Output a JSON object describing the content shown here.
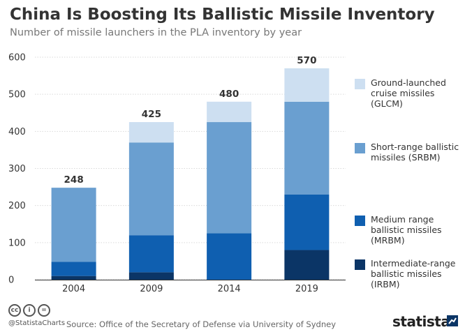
{
  "header": {
    "title": "China Is Boosting Its Ballistic Missile Inventory",
    "subtitle": "Number of missile launchers in the PLA inventory by year"
  },
  "chart_data": {
    "type": "bar",
    "stacked": true,
    "categories": [
      "2004",
      "2009",
      "2014",
      "2019"
    ],
    "series": [
      {
        "name": "Intermediate-range ballistic missiles (IRBM)",
        "color": "#0b3566",
        "values": [
          10,
          20,
          0,
          80
        ]
      },
      {
        "name": "Medium range ballistic missiles (MRBM)",
        "color": "#0f5fb0",
        "values": [
          38,
          100,
          125,
          150
        ]
      },
      {
        "name": "Short-range ballistic missiles (SRBM)",
        "color": "#6a9fd0",
        "values": [
          200,
          250,
          300,
          250
        ]
      },
      {
        "name": "Ground-launched cruise missiles (GLCM)",
        "color": "#cddff1",
        "values": [
          0,
          55,
          55,
          90
        ]
      }
    ],
    "totals": [
      "248",
      "425",
      "480",
      "570"
    ],
    "ylim": [
      0,
      600
    ],
    "yticks": [
      "0",
      "100",
      "200",
      "300",
      "400",
      "500",
      "600"
    ],
    "grid": true,
    "legend_position": "right"
  },
  "legend": {
    "items": [
      {
        "label": "Ground-launched\ncruise missiles\n(GLCM)",
        "color": "#cddff1"
      },
      {
        "label": "Short-range ballistic\nmissiles (SRBM)",
        "color": "#6a9fd0"
      },
      {
        "label": "Medium range\nballistic missiles\n(MRBM)",
        "color": "#0f5fb0"
      },
      {
        "label": "Intermediate-range\nballistic missiles\n(IRBM)",
        "color": "#0b3566"
      }
    ]
  },
  "footer": {
    "cc_icons": [
      "cc-icon",
      "by-icon",
      "equals-icon"
    ],
    "cc_glyphs": [
      "cc",
      "i",
      "="
    ],
    "handle": "@StatistaCharts",
    "source": "Source: Office of the Secretary of Defense via University of Sydney",
    "brand": "statista"
  }
}
